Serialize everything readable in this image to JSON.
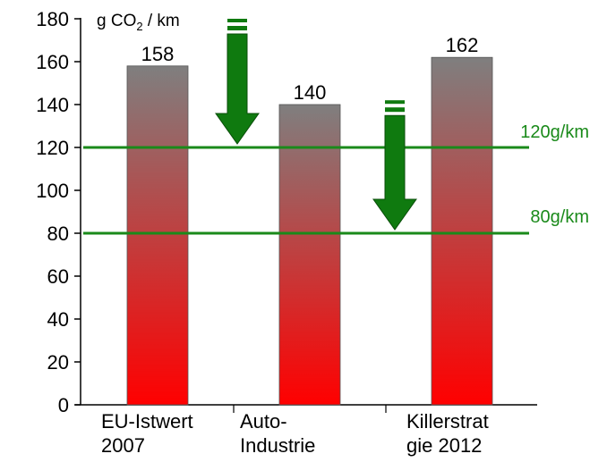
{
  "colors": {
    "bar_top": "#7f7f7f",
    "bar_bottom": "#ff0000",
    "reference": "#1a8a1a",
    "arrow": "#0f7a0f"
  },
  "chart_data": {
    "type": "bar",
    "unit_label": {
      "prefix": "g CO",
      "subscript": "2",
      "suffix": " / km"
    },
    "categories": [
      {
        "line1": "EU-Istwert",
        "line2": "2007"
      },
      {
        "line1": "Auto-",
        "line2": "Industrie"
      },
      {
        "line1": "Killerstrat",
        "line2": "gie 2012"
      }
    ],
    "values": [
      158,
      140,
      162
    ],
    "value_labels": [
      "158",
      "140",
      "162"
    ],
    "ylim": [
      0,
      180
    ],
    "yticks": [
      0,
      20,
      40,
      60,
      80,
      100,
      120,
      140,
      160,
      180
    ],
    "grid": false,
    "reference_lines": [
      {
        "value": 120,
        "label": "120g/km"
      },
      {
        "value": 80,
        "label": "80g/km"
      }
    ],
    "annotations": [
      {
        "type": "down-arrow",
        "from_value": 180,
        "to_value": 120
      },
      {
        "type": "down-arrow",
        "from_value": 142,
        "to_value": 80
      }
    ]
  }
}
